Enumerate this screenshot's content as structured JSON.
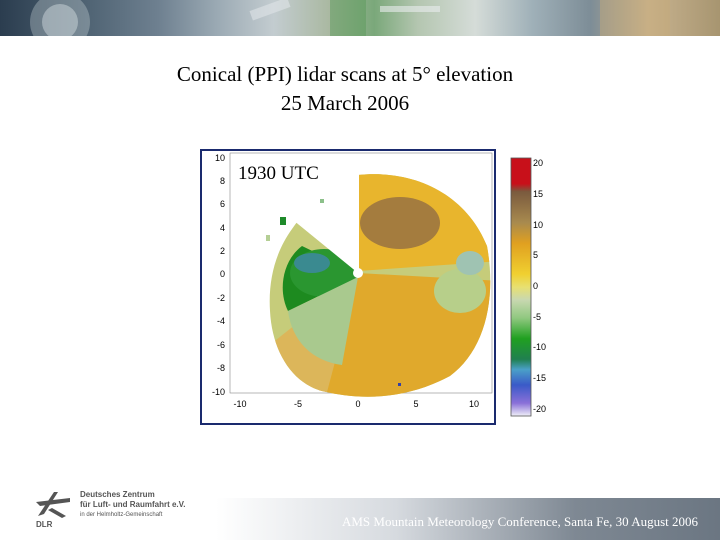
{
  "slide": {
    "title_line1": "Conical (PPI) lidar scans at 5° elevation",
    "title_line2": "25 March 2006",
    "footer": "AMS Mountain Meteorology Conference, Santa Fe, 30 August 2006"
  },
  "logo": {
    "line1": "Deutsches Zentrum",
    "line2": "für Luft- und Raumfahrt e.V.",
    "line3": "in der Helmholtz-Gemeinschaft",
    "abbrev": "DLR"
  },
  "plot": {
    "time_label": "1930 UTC",
    "x_ticks": [
      "-10",
      "-5",
      "0",
      "5",
      "10"
    ],
    "y_ticks": [
      "10",
      "8",
      "6",
      "4",
      "2",
      "0",
      "-2",
      "-4",
      "-6",
      "-8",
      "-10"
    ],
    "colorbar_ticks": [
      "20",
      "15",
      "10",
      "5",
      "0",
      "-5",
      "-10",
      "-15",
      "-20"
    ]
  }
}
